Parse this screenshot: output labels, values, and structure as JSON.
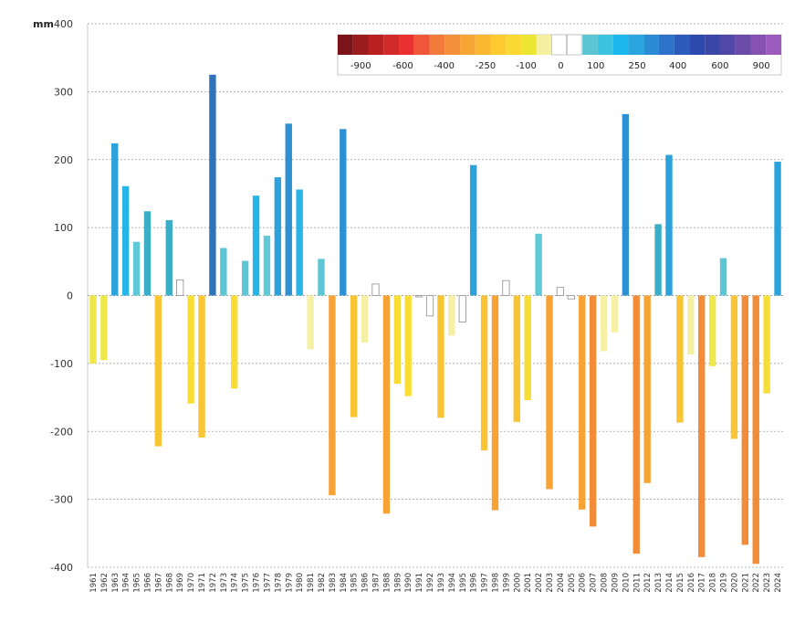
{
  "chart_data": {
    "type": "bar",
    "ylabel": "mm",
    "ylim": [
      -400,
      400
    ],
    "yticks": [
      400,
      300,
      200,
      100,
      0,
      -100,
      -200,
      -300,
      -400
    ],
    "grid": true,
    "legend": {
      "position": "top-right",
      "type": "color-scale",
      "labels": [
        "-900",
        "-600",
        "-400",
        "-250",
        "-100",
        "0",
        "100",
        "250",
        "400",
        "600",
        "900"
      ],
      "colors": [
        "#7a1418",
        "#9a1c1f",
        "#b9201f",
        "#d22a29",
        "#eb3030",
        "#f0563a",
        "#f27a3a",
        "#f5903a",
        "#f7a535",
        "#fab832",
        "#fdca2f",
        "#fbd933",
        "#ece632",
        "#f5f0a0",
        "#ffffff",
        "#ffffff",
        "#5bc5d3",
        "#3cc3e0",
        "#1ab8ed",
        "#2aa5e0",
        "#2a8cd4",
        "#2b72c8",
        "#2b5cbc",
        "#2c4aae",
        "#3b47a6",
        "#4f48a6",
        "#6a4ca8",
        "#8552b2",
        "#9a5bbc"
      ]
    },
    "categories": [
      "1961",
      "1962",
      "1963",
      "1964",
      "1965",
      "1966",
      "1967",
      "1968",
      "1969",
      "1970",
      "1971",
      "1972",
      "1973",
      "1974",
      "1975",
      "1976",
      "1977",
      "1978",
      "1979",
      "1980",
      "1981",
      "1982",
      "1983",
      "1984",
      "1985",
      "1986",
      "1987",
      "1988",
      "1989",
      "1990",
      "1991",
      "1992",
      "1993",
      "1994",
      "1995",
      "1996",
      "1997",
      "1998",
      "1999",
      "2000",
      "2001",
      "2002",
      "2003",
      "2004",
      "2005",
      "2006",
      "2007",
      "2008",
      "2009",
      "2010",
      "2011",
      "2012",
      "2013",
      "2014",
      "2015",
      "2016",
      "2017",
      "2018",
      "2019",
      "2020",
      "2021",
      "2022",
      "2023",
      "2024"
    ],
    "values": [
      -100,
      -95,
      224,
      161,
      79,
      124,
      -222,
      111,
      23,
      -159,
      -209,
      325,
      70,
      -137,
      51,
      147,
      88,
      174,
      253,
      156,
      -79,
      54,
      -294,
      245,
      -179,
      -69,
      17,
      -321,
      -130,
      -148,
      -2,
      -30,
      -180,
      -59,
      -39,
      192,
      -228,
      -316,
      22,
      -186,
      -154,
      91,
      -285,
      12,
      -5,
      -315,
      -340,
      -82,
      -54,
      267,
      -380,
      -276,
      105,
      207,
      -187,
      -87,
      -385,
      -104,
      55,
      -211,
      -367,
      -395,
      -144,
      197
    ]
  }
}
